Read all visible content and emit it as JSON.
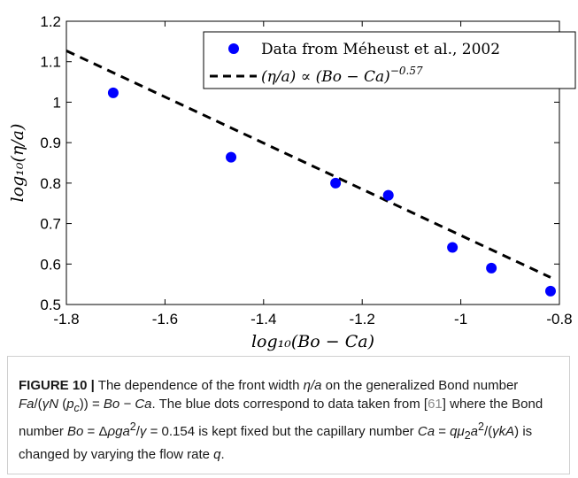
{
  "chart_data": {
    "type": "scatter",
    "xlabel": "log₁₀(Bo − Ca)",
    "ylabel": "log₁₀(η/a)",
    "xlim": [
      -1.8,
      -0.8
    ],
    "ylim": [
      0.5,
      1.2
    ],
    "xticks": [
      -1.8,
      -1.6,
      -1.4,
      -1.2,
      -1.0,
      -0.8
    ],
    "xtick_labels": [
      "-1.8",
      "-1.6",
      "-1.4",
      "-1.2",
      "-1",
      "-0.8"
    ],
    "yticks": [
      0.5,
      0.6,
      0.7,
      0.8,
      0.9,
      1.0,
      1.1,
      1.2
    ],
    "ytick_labels": [
      "0.5",
      "0.6",
      "0.7",
      "0.8",
      "0.9",
      "1",
      "1.1",
      "1.2"
    ],
    "grid": false,
    "legend_position": "top-right",
    "series": [
      {
        "name": "Data from Méheust et al., 2002",
        "kind": "scatter",
        "color": "#0000ff",
        "x": [
          -1.705,
          -1.466,
          -1.254,
          -1.147,
          -1.017,
          -0.938,
          -0.818
        ],
        "y": [
          1.023,
          0.864,
          0.8,
          0.77,
          0.641,
          0.59,
          0.533
        ]
      },
      {
        "name": "(η/a) ∝ (Bo − Ca)^−0.57",
        "kind": "line",
        "style": "dashed",
        "color": "#000000",
        "x": [
          -1.8,
          -0.818
        ],
        "y": [
          1.127,
          0.567
        ]
      }
    ],
    "legend": {
      "scatter_label": "Data from Méheust et al., 2002",
      "line_label_base": "(η/a) ∝ (Bo − Ca)",
      "line_label_exponent": "−0.57"
    }
  },
  "caption": {
    "figure_label": "FIGURE 10 |",
    "seg1": " The dependence of the front width ",
    "eta_over_a": "η/a",
    "seg2": " on the generalized Bond number ",
    "fa_expr": "Fa",
    "seg3": "/(",
    "gamma_n_pc": "γN",
    "pc_open": " (",
    "p": "p",
    "c_sub": "c",
    "close": ")) = ",
    "bo_minus_ca": "Bo − Ca",
    "seg4": ". The blue dots correspond to data taken from [",
    "ref": "61",
    "seg5": "] where the Bond number ",
    "bo": "Bo",
    "seg6": " = Δ",
    "rho_g_a": "ρga",
    "sq1": "2",
    "seg7": "/",
    "gamma": "γ",
    "seg8": " = 0.154 is kept fixed but the capillary number ",
    "ca": "Ca",
    "seg9": " = ",
    "q_mu": "qμ",
    "mu_sub": "2",
    "a_sym": "a",
    "sq2": "2",
    "seg10": "/(",
    "gamma_k_a": "γkA",
    "seg11": ") is changed by varying the flow rate ",
    "q": "q",
    "seg12": "."
  }
}
